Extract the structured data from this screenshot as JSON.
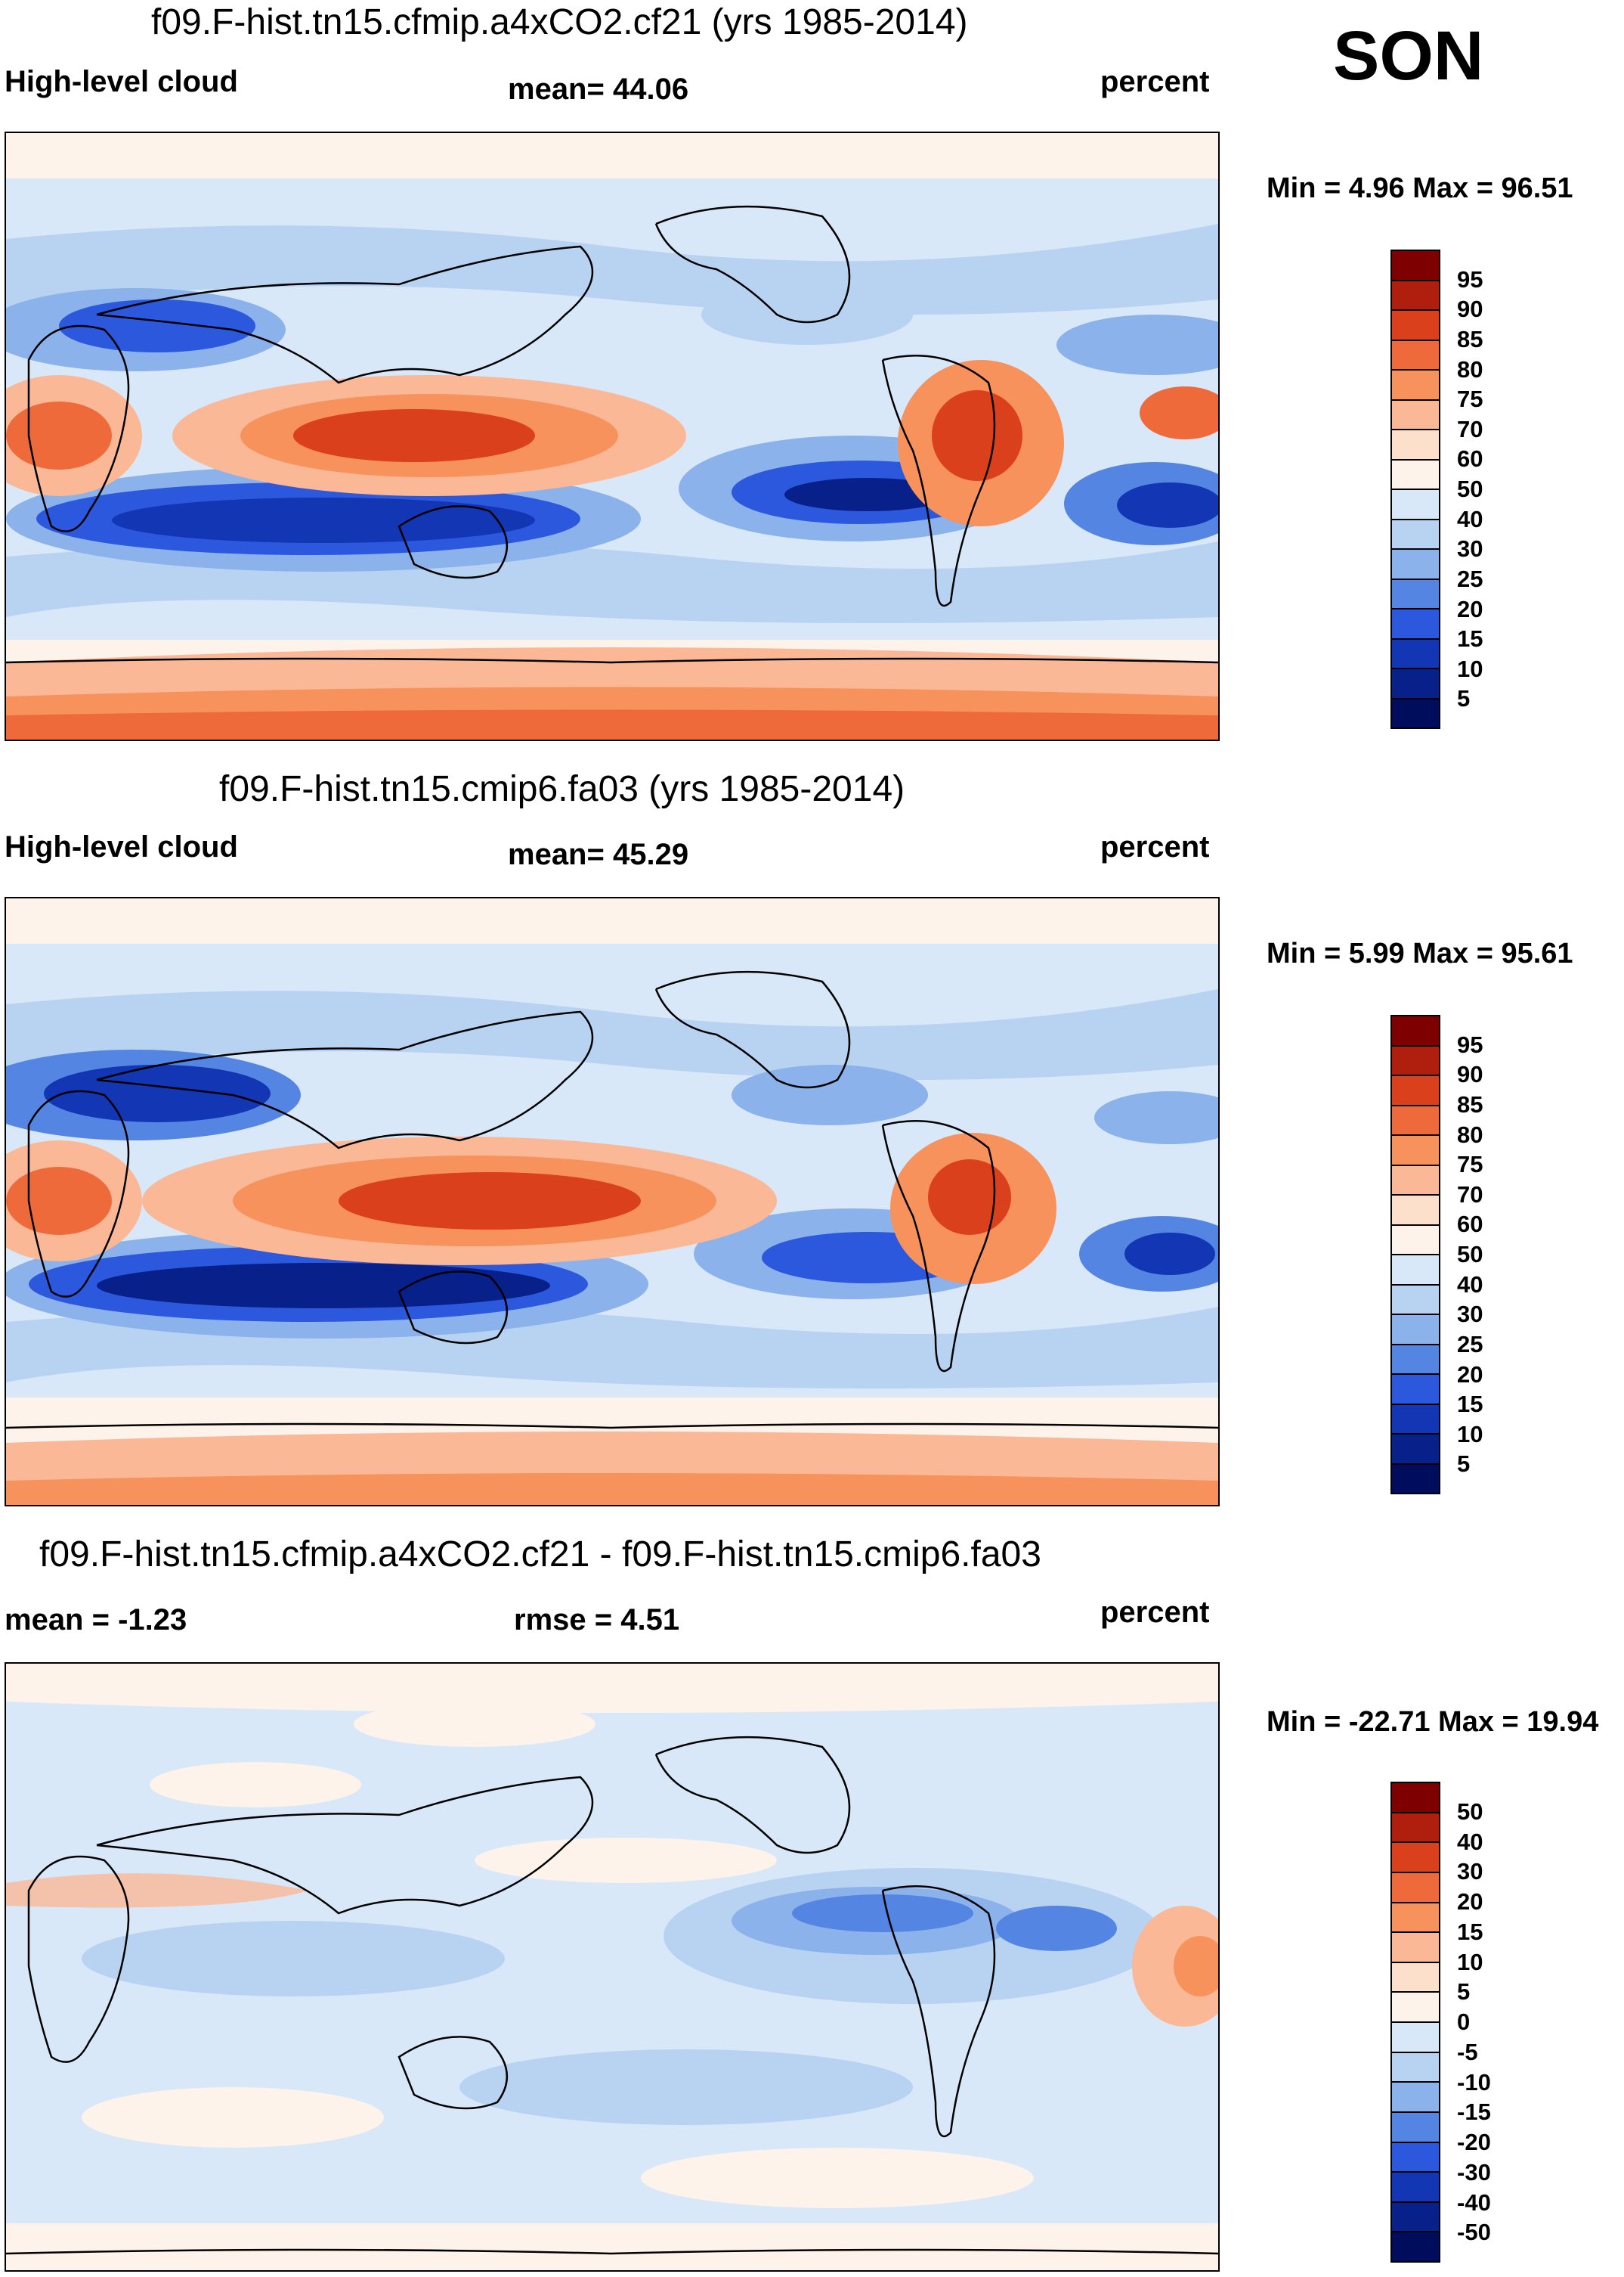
{
  "season": "SON",
  "panels": [
    {
      "id": "p1",
      "title": "f09.F-hist.tn15.cfmip.a4xCO2.cf21 (yrs 1985-2014)",
      "left_label": "High-level cloud",
      "center_label": "mean=  44.06",
      "right_label": "percent",
      "min_max": "Min =   4.96 Max =  96.51",
      "colorbar_levels": [
        "95",
        "90",
        "85",
        "80",
        "75",
        "70",
        "60",
        "50",
        "40",
        "30",
        "25",
        "20",
        "15",
        "10",
        "5"
      ]
    },
    {
      "id": "p2",
      "title": "f09.F-hist.tn15.cmip6.fa03 (yrs 1985-2014)",
      "left_label": "High-level cloud",
      "center_label": "mean=  45.29",
      "right_label": "percent",
      "min_max": "Min =   5.99 Max =  95.61",
      "colorbar_levels": [
        "95",
        "90",
        "85",
        "80",
        "75",
        "70",
        "60",
        "50",
        "40",
        "30",
        "25",
        "20",
        "15",
        "10",
        "5"
      ]
    },
    {
      "id": "p3",
      "title": "f09.F-hist.tn15.cfmip.a4xCO2.cf21 - f09.F-hist.tn15.cmip6.fa03",
      "left_label": "mean =  -1.23",
      "center_label": "rmse =    4.51",
      "right_label": "percent",
      "min_max": "Min = -22.71 Max =  19.94",
      "colorbar_levels": [
        "50",
        "40",
        "30",
        "20",
        "15",
        "10",
        "5",
        "0",
        "-5",
        "-10",
        "-15",
        "-20",
        "-30",
        "-40",
        "-50"
      ]
    }
  ],
  "colors": {
    "abs_scale": [
      "#7f0000",
      "#b01e0e",
      "#d9401b",
      "#ef6a3a",
      "#f7925d",
      "#fbb896",
      "#fde0cc",
      "#fdf3ea",
      "#d8e8f8",
      "#b8d3f2",
      "#8bb2ea",
      "#5585e2",
      "#2b58dc",
      "#1236b4",
      "#07208a",
      "#000d5c"
    ],
    "diff_scale": [
      "#7f0000",
      "#b01e0e",
      "#d9401b",
      "#ef6a3a",
      "#f7925d",
      "#fbb896",
      "#fde0cc",
      "#fdf3ea",
      "#d8e8f8",
      "#b8d3f2",
      "#8bb2ea",
      "#5585e2",
      "#2b58dc",
      "#1236b4",
      "#07208a",
      "#000d5c"
    ]
  }
}
